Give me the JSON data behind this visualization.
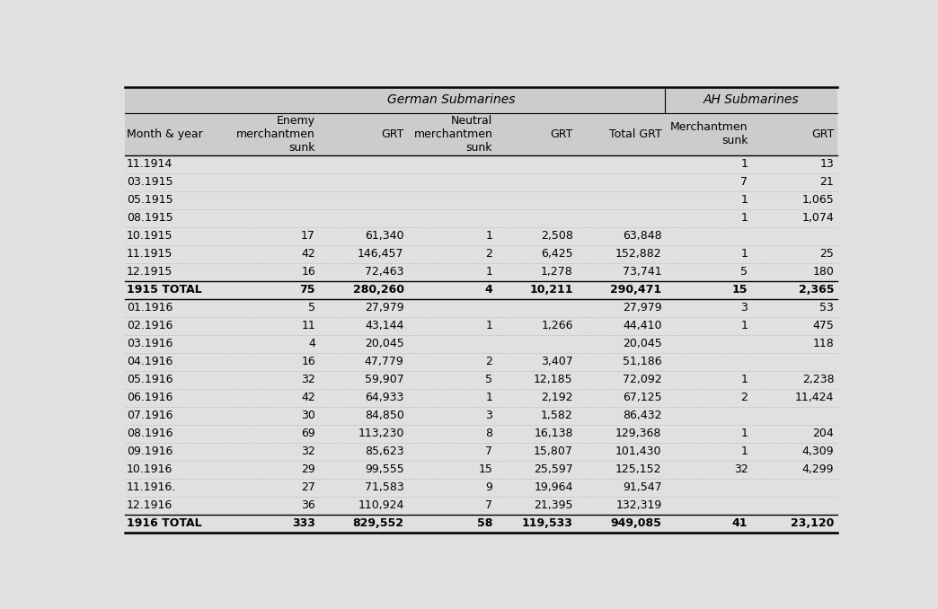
{
  "columns": [
    "Month & year",
    "Enemy\nmerchantmen\nsunk",
    "GRT",
    "Neutral\nmerchantmen\nsunk",
    "GRT",
    "Total GRT",
    "Merchantmen\nsunk",
    "GRT"
  ],
  "rows": [
    [
      "11.1914",
      "",
      "",
      "",
      "",
      "",
      "1",
      "13"
    ],
    [
      "03.1915",
      "",
      "",
      "",
      "",
      "",
      "7",
      "21"
    ],
    [
      "05.1915",
      "",
      "",
      "",
      "",
      "",
      "1",
      "1,065"
    ],
    [
      "08.1915",
      "",
      "",
      "",
      "",
      "",
      "1",
      "1,074"
    ],
    [
      "10.1915",
      "17",
      "61,340",
      "1",
      "2,508",
      "63,848",
      "",
      ""
    ],
    [
      "11.1915",
      "42",
      "146,457",
      "2",
      "6,425",
      "152,882",
      "1",
      "25"
    ],
    [
      "12.1915",
      "16",
      "72,463",
      "1",
      "1,278",
      "73,741",
      "5",
      "180"
    ],
    [
      "1915 TOTAL",
      "75",
      "280,260",
      "4",
      "10,211",
      "290,471",
      "15",
      "2,365"
    ],
    [
      "01.1916",
      "5",
      "27,979",
      "",
      "",
      "27,979",
      "3",
      "53"
    ],
    [
      "02.1916",
      "11",
      "43,144",
      "1",
      "1,266",
      "44,410",
      "1",
      "475"
    ],
    [
      "03.1916",
      "4",
      "20,045",
      "",
      "",
      "20,045",
      "",
      "118"
    ],
    [
      "04.1916",
      "16",
      "47,779",
      "2",
      "3,407",
      "51,186",
      "",
      ""
    ],
    [
      "05.1916",
      "32",
      "59,907",
      "5",
      "12,185",
      "72,092",
      "1",
      "2,238"
    ],
    [
      "06.1916",
      "42",
      "64,933",
      "1",
      "2,192",
      "67,125",
      "2",
      "11,424"
    ],
    [
      "07.1916",
      "30",
      "84,850",
      "3",
      "1,582",
      "86,432",
      "",
      ""
    ],
    [
      "08.1916",
      "69",
      "113,230",
      "8",
      "16,138",
      "129,368",
      "1",
      "204"
    ],
    [
      "09.1916",
      "32",
      "85,623",
      "7",
      "15,807",
      "101,430",
      "1",
      "4,309"
    ],
    [
      "10.1916",
      "29",
      "99,555",
      "15",
      "25,597",
      "125,152",
      "32",
      "4,299"
    ],
    [
      "11.1916.",
      "27",
      "71,583",
      "9",
      "19,964",
      "91,547",
      "",
      ""
    ],
    [
      "12.1916",
      "36",
      "110,924",
      "7",
      "21,395",
      "132,319",
      "",
      ""
    ],
    [
      "1916 TOTAL",
      "333",
      "829,552",
      "58",
      "119,533",
      "949,085",
      "41",
      "23,120"
    ]
  ],
  "total_rows": [
    7,
    20
  ],
  "bg_color": "#e0e0e0",
  "font_size": 9.0,
  "col_props": [
    0.138,
    0.098,
    0.108,
    0.108,
    0.098,
    0.108,
    0.105,
    0.105
  ]
}
